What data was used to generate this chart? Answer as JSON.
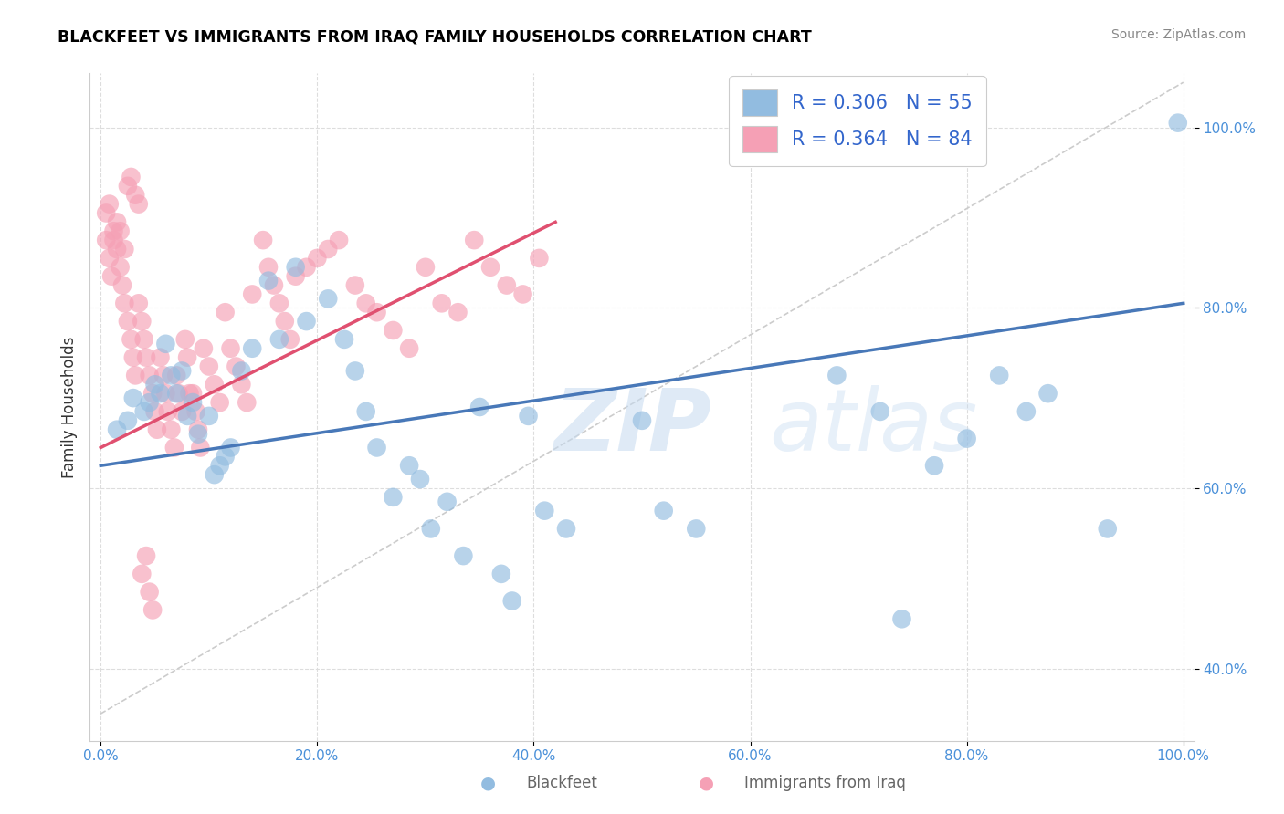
{
  "title": "BLACKFEET VS IMMIGRANTS FROM IRAQ FAMILY HOUSEHOLDS CORRELATION CHART",
  "source": "Source: ZipAtlas.com",
  "ylabel": "Family Households",
  "watermark_zip": "ZIP",
  "watermark_atlas": "atlas",
  "legend_blue_R": "R = 0.306",
  "legend_blue_N": "N = 55",
  "legend_pink_R": "R = 0.364",
  "legend_pink_N": "N = 84",
  "blue_color": "#92bce0",
  "pink_color": "#f5a0b5",
  "blue_line_color": "#4878b8",
  "pink_line_color": "#e05070",
  "xlim": [
    -0.01,
    1.01
  ],
  "ylim": [
    0.32,
    1.06
  ],
  "xticks": [
    0.0,
    0.2,
    0.4,
    0.6,
    0.8,
    1.0
  ],
  "yticks": [
    0.4,
    0.6,
    0.8,
    1.0
  ],
  "xtick_labels": [
    "0.0%",
    "20.0%",
    "40.0%",
    "60.0%",
    "80.0%",
    "100.0%"
  ],
  "ytick_labels": [
    "40.0%",
    "60.0%",
    "80.0%",
    "100.0%"
  ],
  "bottom_labels": [
    "Blackfeet",
    "Immigrants from Iraq"
  ],
  "blue_trend": [
    0.625,
    0.805
  ],
  "pink_trend_x": [
    0.0,
    0.42
  ],
  "pink_trend_y": [
    0.645,
    0.895
  ],
  "diag_line": [
    [
      0.0,
      1.0
    ],
    [
      0.35,
      1.05
    ]
  ],
  "blue_x": [
    0.015,
    0.025,
    0.03,
    0.04,
    0.045,
    0.05,
    0.055,
    0.06,
    0.065,
    0.07,
    0.075,
    0.08,
    0.085,
    0.09,
    0.1,
    0.105,
    0.11,
    0.115,
    0.12,
    0.13,
    0.14,
    0.155,
    0.165,
    0.18,
    0.19,
    0.21,
    0.225,
    0.235,
    0.245,
    0.255,
    0.27,
    0.285,
    0.295,
    0.305,
    0.32,
    0.335,
    0.35,
    0.37,
    0.38,
    0.395,
    0.41,
    0.43,
    0.5,
    0.52,
    0.55,
    0.68,
    0.72,
    0.74,
    0.77,
    0.8,
    0.83,
    0.855,
    0.875,
    0.93,
    0.995
  ],
  "blue_y": [
    0.665,
    0.675,
    0.7,
    0.685,
    0.695,
    0.715,
    0.705,
    0.76,
    0.725,
    0.705,
    0.73,
    0.68,
    0.695,
    0.66,
    0.68,
    0.615,
    0.625,
    0.635,
    0.645,
    0.73,
    0.755,
    0.83,
    0.765,
    0.845,
    0.785,
    0.81,
    0.765,
    0.73,
    0.685,
    0.645,
    0.59,
    0.625,
    0.61,
    0.555,
    0.585,
    0.525,
    0.69,
    0.505,
    0.475,
    0.68,
    0.575,
    0.555,
    0.675,
    0.575,
    0.555,
    0.725,
    0.685,
    0.455,
    0.625,
    0.655,
    0.725,
    0.685,
    0.705,
    0.555,
    1.005
  ],
  "pink_x": [
    0.005,
    0.008,
    0.01,
    0.012,
    0.015,
    0.018,
    0.02,
    0.022,
    0.025,
    0.028,
    0.03,
    0.032,
    0.035,
    0.038,
    0.04,
    0.042,
    0.045,
    0.048,
    0.05,
    0.052,
    0.055,
    0.058,
    0.06,
    0.062,
    0.065,
    0.068,
    0.07,
    0.072,
    0.075,
    0.078,
    0.08,
    0.082,
    0.085,
    0.088,
    0.09,
    0.092,
    0.095,
    0.1,
    0.105,
    0.11,
    0.115,
    0.12,
    0.125,
    0.13,
    0.135,
    0.14,
    0.15,
    0.155,
    0.16,
    0.165,
    0.17,
    0.175,
    0.18,
    0.19,
    0.2,
    0.21,
    0.22,
    0.235,
    0.245,
    0.255,
    0.27,
    0.285,
    0.3,
    0.315,
    0.33,
    0.345,
    0.36,
    0.375,
    0.39,
    0.405,
    0.005,
    0.008,
    0.012,
    0.015,
    0.018,
    0.022,
    0.025,
    0.028,
    0.032,
    0.035,
    0.038,
    0.042,
    0.045,
    0.048
  ],
  "pink_y": [
    0.875,
    0.855,
    0.835,
    0.885,
    0.865,
    0.845,
    0.825,
    0.805,
    0.785,
    0.765,
    0.745,
    0.725,
    0.805,
    0.785,
    0.765,
    0.745,
    0.725,
    0.705,
    0.685,
    0.665,
    0.745,
    0.725,
    0.705,
    0.685,
    0.665,
    0.645,
    0.725,
    0.705,
    0.685,
    0.765,
    0.745,
    0.705,
    0.705,
    0.685,
    0.665,
    0.645,
    0.755,
    0.735,
    0.715,
    0.695,
    0.795,
    0.755,
    0.735,
    0.715,
    0.695,
    0.815,
    0.875,
    0.845,
    0.825,
    0.805,
    0.785,
    0.765,
    0.835,
    0.845,
    0.855,
    0.865,
    0.875,
    0.825,
    0.805,
    0.795,
    0.775,
    0.755,
    0.845,
    0.805,
    0.795,
    0.875,
    0.845,
    0.825,
    0.815,
    0.855,
    0.905,
    0.915,
    0.875,
    0.895,
    0.885,
    0.865,
    0.935,
    0.945,
    0.925,
    0.915,
    0.505,
    0.525,
    0.485,
    0.465
  ]
}
